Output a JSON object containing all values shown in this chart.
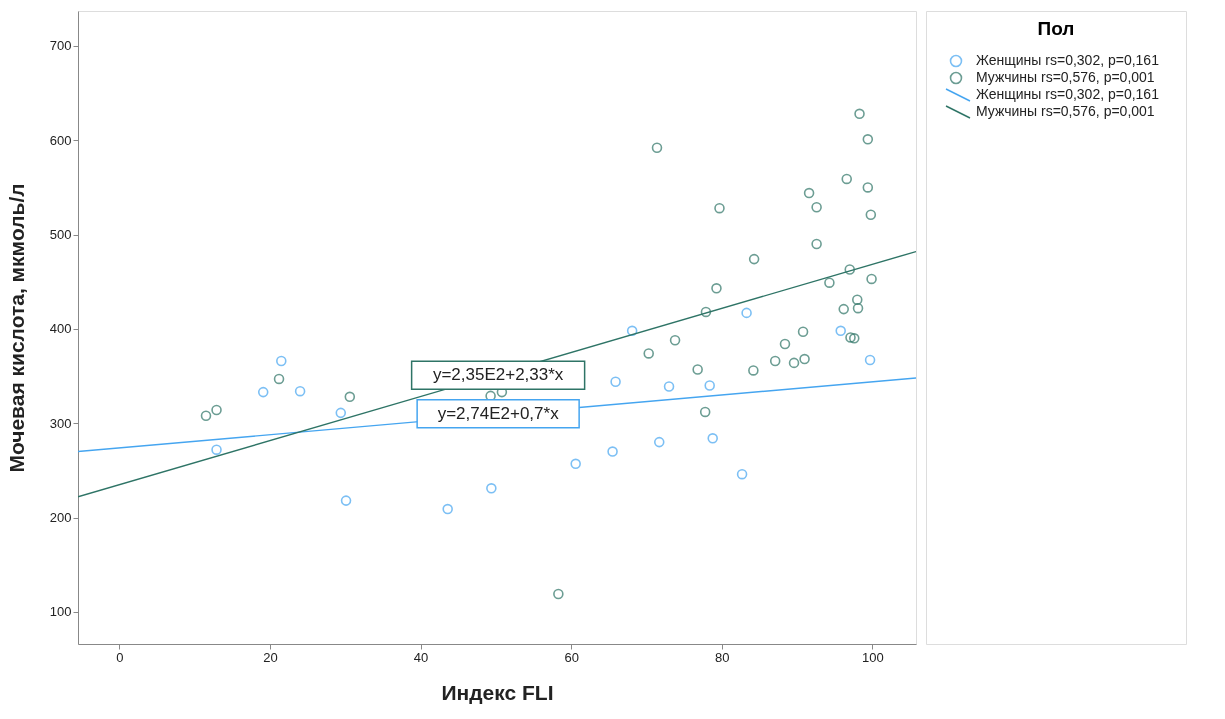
{
  "chart_data": {
    "type": "scatter",
    "xlabel": "Индекс FLI",
    "ylabel": "Мочевая кислота, мкмоль/л",
    "legend_title": "Пол",
    "xlim": [
      -5.5,
      105.8
    ],
    "ylim": [
      66,
      737
    ],
    "xticks": [
      0,
      20,
      40,
      60,
      80,
      100
    ],
    "yticks": [
      100,
      200,
      300,
      400,
      500,
      600,
      700
    ],
    "grid": false,
    "legend": "top right",
    "series": [
      {
        "name": "Женщины rs=0,302, p=0,161",
        "type": "scatter",
        "marker": "circle",
        "color": "#45a5f0",
        "x": [
          12.9,
          19.1,
          21.5,
          24.0,
          29.4,
          30.1,
          43.6,
          49.4,
          60.6,
          65.5,
          65.9,
          68.1,
          71.7,
          73.0,
          78.4,
          78.8,
          82.7,
          83.3,
          95.8,
          99.7
        ],
        "values": [
          272,
          333,
          366,
          334,
          311,
          218,
          209,
          231,
          257,
          270,
          344,
          398,
          280,
          339,
          340,
          284,
          246,
          417,
          398,
          367
        ]
      },
      {
        "name": "Мужчины rs=0,576, p=0,001",
        "type": "scatter",
        "marker": "circle",
        "color": "#2e7466",
        "x": [
          11.5,
          12.9,
          21.2,
          30.6,
          49.3,
          50.8,
          58.3,
          70.3,
          71.4,
          73.8,
          76.8,
          77.8,
          77.9,
          79.3,
          79.7,
          84.2,
          84.3,
          87.1,
          88.4,
          89.6,
          90.8,
          91.0,
          91.6,
          92.6,
          92.6,
          94.3,
          96.2,
          96.6,
          97.0,
          97.1,
          97.6,
          98.0,
          98.1,
          98.3,
          99.4,
          99.4,
          99.8,
          99.9
        ],
        "values": [
          308,
          314,
          347,
          328,
          329,
          333,
          119,
          374,
          592,
          388,
          357,
          312,
          418,
          443,
          528,
          356,
          474,
          366,
          384,
          364,
          397,
          368,
          544,
          529,
          490,
          449,
          421,
          559,
          463,
          391,
          390,
          431,
          422,
          628,
          601,
          550,
          521,
          453
        ]
      },
      {
        "name": "Женщины rs=0,302, p=0,161",
        "type": "line",
        "color": "#45a5f0",
        "x": [
          -5.5,
          105.8
        ],
        "values": [
          270,
          348
        ]
      },
      {
        "name": "Мужчины rs=0,576, p=0,001",
        "type": "line",
        "color": "#2e7466",
        "x": [
          -5.5,
          105.8
        ],
        "values": [
          222,
          482
        ]
      }
    ],
    "annotations": [
      {
        "text": "y=2,35E2+2,33*x",
        "x": 50.3,
        "y": 351
      },
      {
        "text": "y=2,74E2+0,7*x",
        "x": 50.3,
        "y": 310
      }
    ]
  }
}
